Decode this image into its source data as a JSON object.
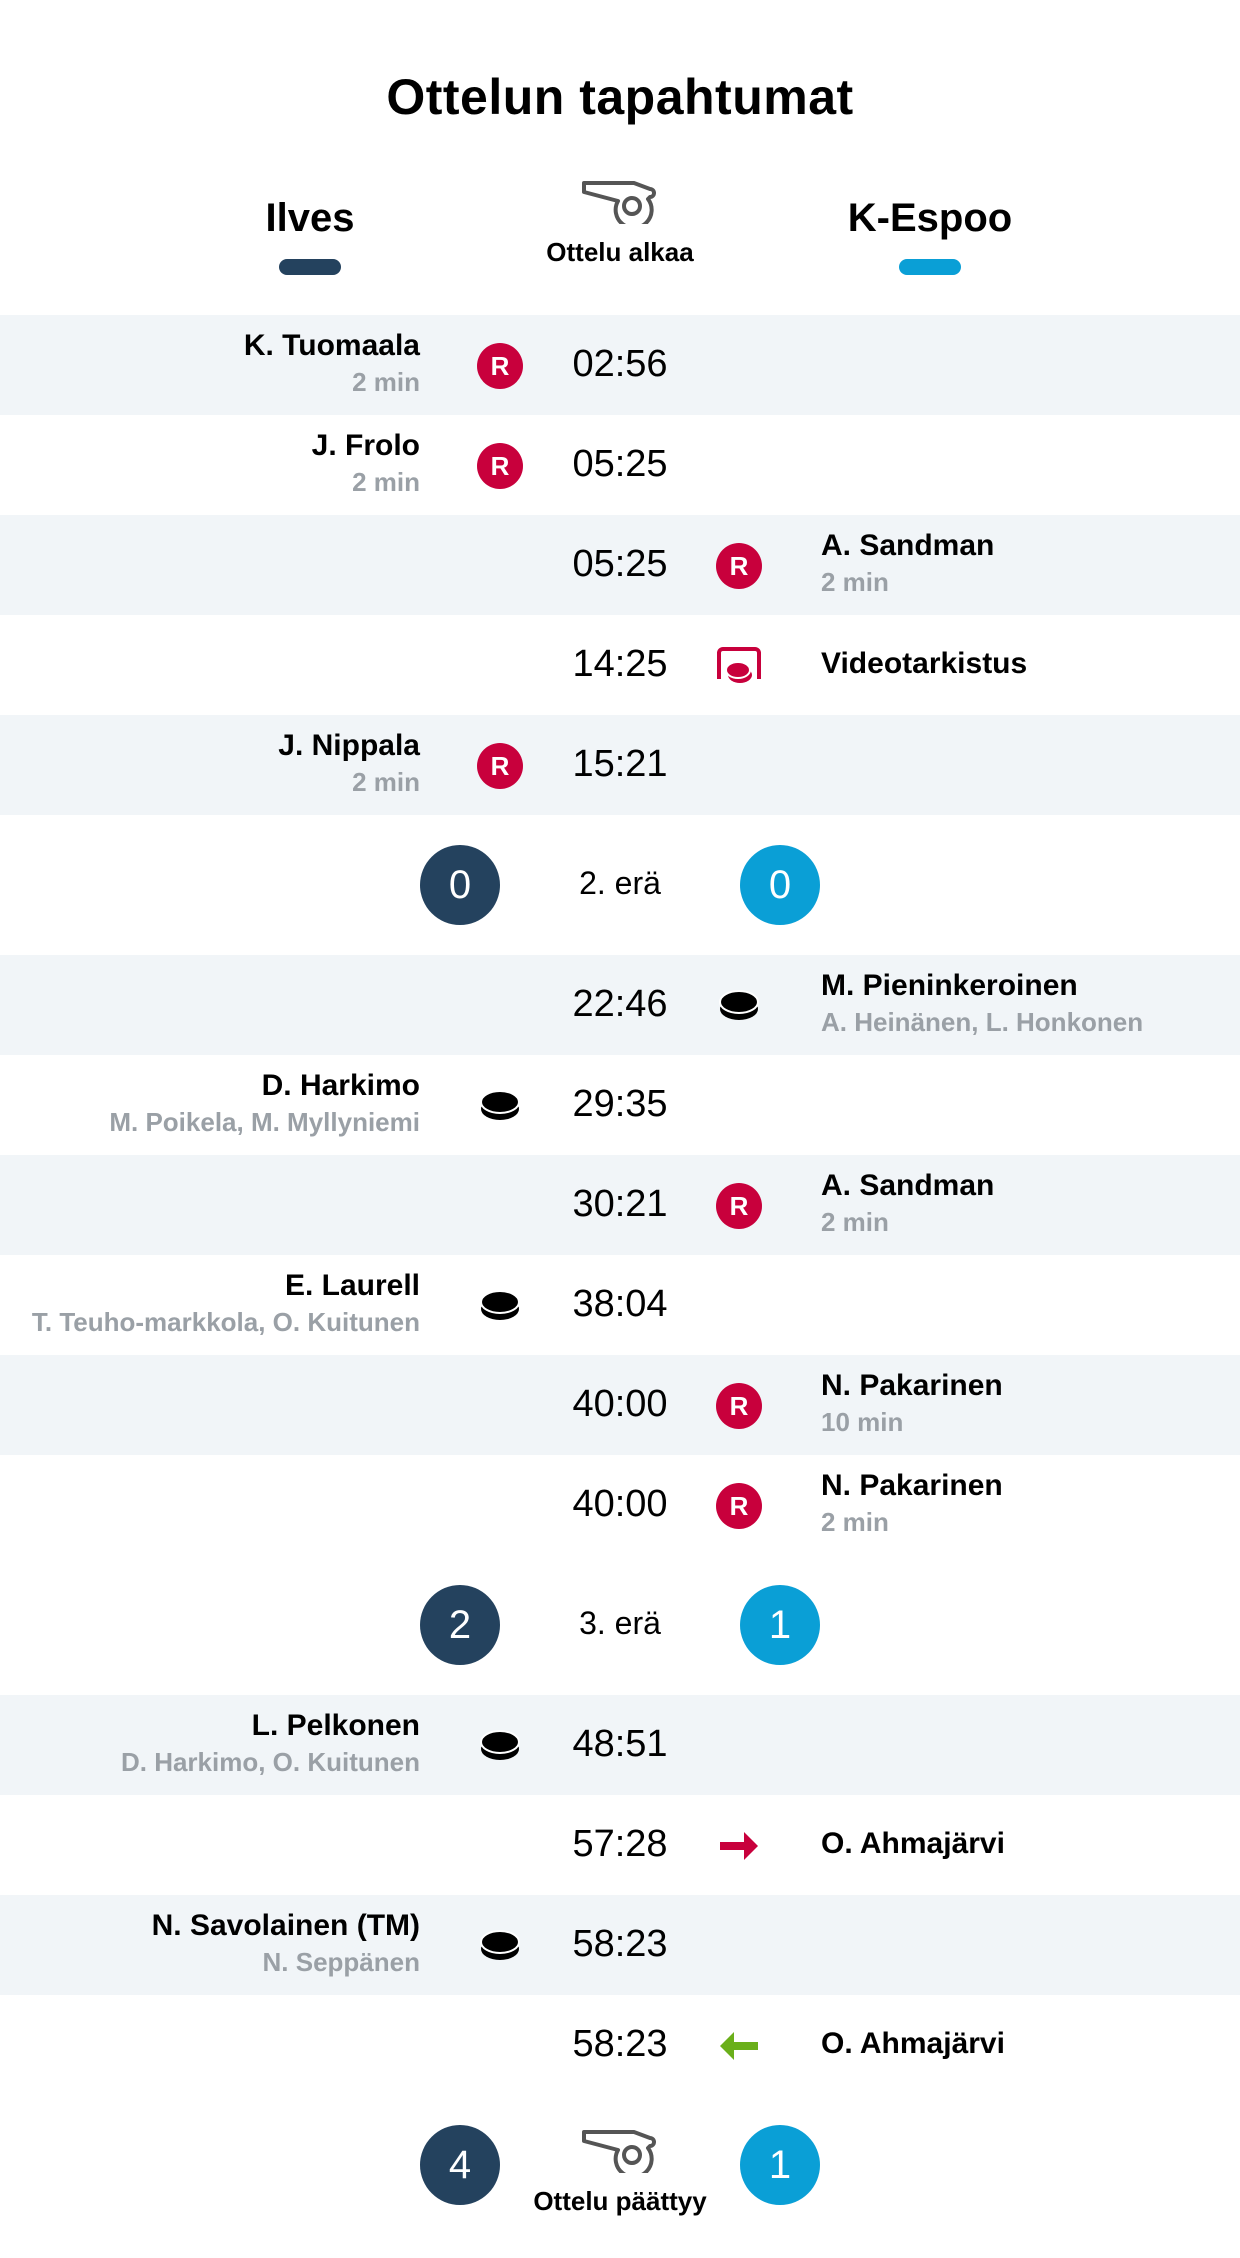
{
  "title": "Ottelun tapahtumat",
  "home": {
    "name": "Ilves",
    "color": "#24425e"
  },
  "away": {
    "name": "K-Espoo",
    "color": "#0a9fd6"
  },
  "start_label": "Ottelu alkaa",
  "end_label": "Ottelu päättyy",
  "colors": {
    "penalty": "#c8003c",
    "arrow_in": "#6aaf1a",
    "arrow_out": "#c8003c",
    "shade": "#f1f5f8"
  },
  "sections": [
    {
      "events": [
        {
          "side": "home",
          "time": "02:56",
          "icon": "penalty",
          "name": "K. Tuomaala",
          "detail": "2 min"
        },
        {
          "side": "home",
          "time": "05:25",
          "icon": "penalty",
          "name": "J. Frolo",
          "detail": "2 min"
        },
        {
          "side": "away",
          "time": "05:25",
          "icon": "penalty",
          "name": "A. Sandman",
          "detail": "2 min"
        },
        {
          "side": "away",
          "time": "14:25",
          "icon": "video-review",
          "name": "Videotarkistus",
          "detail": ""
        },
        {
          "side": "home",
          "time": "15:21",
          "icon": "penalty",
          "name": "J. Nippala",
          "detail": "2 min"
        }
      ]
    },
    {
      "period": "2. erä",
      "home_score": "0",
      "away_score": "0",
      "events": [
        {
          "side": "away",
          "time": "22:46",
          "icon": "goal",
          "name": "M. Pieninkeroinen",
          "detail": "A. Heinänen, L. Honkonen"
        },
        {
          "side": "home",
          "time": "29:35",
          "icon": "goal",
          "name": "D. Harkimo",
          "detail": "M. Poikela, M. Myllyniemi"
        },
        {
          "side": "away",
          "time": "30:21",
          "icon": "penalty",
          "name": "A. Sandman",
          "detail": "2 min"
        },
        {
          "side": "home",
          "time": "38:04",
          "icon": "goal",
          "name": "E. Laurell",
          "detail": "T. Teuho-markkola, O. Kuitunen"
        },
        {
          "side": "away",
          "time": "40:00",
          "icon": "penalty",
          "name": "N. Pakarinen",
          "detail": "10 min"
        },
        {
          "side": "away",
          "time": "40:00",
          "icon": "penalty",
          "name": "N. Pakarinen",
          "detail": "2 min"
        }
      ]
    },
    {
      "period": "3. erä",
      "home_score": "2",
      "away_score": "1",
      "events": [
        {
          "side": "home",
          "time": "48:51",
          "icon": "goal",
          "name": "L. Pelkonen",
          "detail": "D. Harkimo, O. Kuitunen"
        },
        {
          "side": "away",
          "time": "57:28",
          "icon": "goalie-out",
          "name": "O. Ahmajärvi",
          "detail": ""
        },
        {
          "side": "home",
          "time": "58:23",
          "icon": "goal",
          "name": "N. Savolainen (TM)",
          "detail": "N. Seppänen"
        },
        {
          "side": "away",
          "time": "58:23",
          "icon": "goalie-in",
          "name": "O. Ahmajärvi",
          "detail": ""
        }
      ]
    }
  ],
  "final": {
    "home_score": "4",
    "away_score": "1"
  },
  "penalty_letter": "R"
}
